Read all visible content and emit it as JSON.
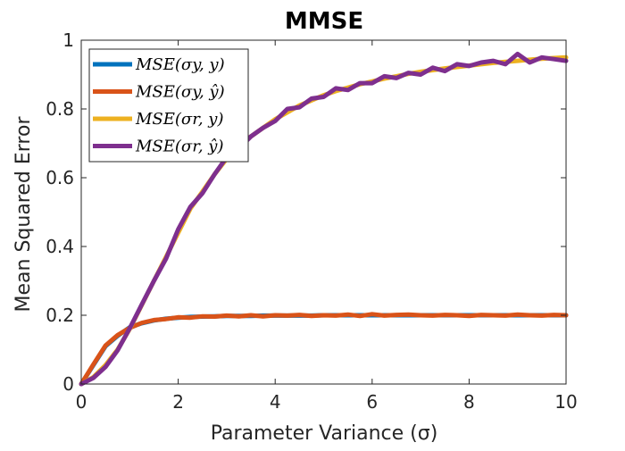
{
  "chart_data": {
    "type": "line",
    "title": "MMSE",
    "xlabel": "Parameter Variance (σ)",
    "ylabel": "Mean Squared Error",
    "xlim": [
      0,
      10
    ],
    "ylim": [
      0,
      1
    ],
    "xticks": [
      0,
      2,
      4,
      6,
      8,
      10
    ],
    "yticks": [
      0,
      0.2,
      0.4,
      0.6,
      0.8,
      1
    ],
    "xtick_labels": [
      "0",
      "2",
      "4",
      "6",
      "8",
      "10"
    ],
    "ytick_labels": [
      "0",
      "0.2",
      "0.4",
      "0.6",
      "0.8",
      "1"
    ],
    "grid": false,
    "legend_position": "top-left",
    "x": [
      0,
      0.25,
      0.5,
      0.75,
      1,
      1.25,
      1.5,
      1.75,
      2,
      2.25,
      2.5,
      2.75,
      3,
      3.25,
      3.5,
      3.75,
      4,
      4.25,
      4.5,
      4.75,
      5,
      5.25,
      5.5,
      5.75,
      6,
      6.25,
      6.5,
      6.75,
      7,
      7.25,
      7.5,
      7.75,
      8,
      8.25,
      8.5,
      8.75,
      9,
      9.25,
      9.5,
      9.75,
      10
    ],
    "series": [
      {
        "name": "MSE(σ_y, y)",
        "legend_label": "MSE(σy, y)",
        "color": "#0072BD",
        "values": [
          0,
          0.055,
          0.11,
          0.14,
          0.165,
          0.177,
          0.185,
          0.19,
          0.193,
          0.195,
          0.196,
          0.197,
          0.198,
          0.198,
          0.198,
          0.199,
          0.199,
          0.199,
          0.199,
          0.199,
          0.2,
          0.2,
          0.2,
          0.2,
          0.2,
          0.2,
          0.2,
          0.2,
          0.2,
          0.2,
          0.2,
          0.2,
          0.2,
          0.2,
          0.2,
          0.2,
          0.2,
          0.2,
          0.2,
          0.2,
          0.2
        ]
      },
      {
        "name": "MSE(σ_y, ŷ)",
        "legend_label": "MSE(σy, ŷ)",
        "color": "#D95319",
        "values": [
          0,
          0.057,
          0.112,
          0.142,
          0.163,
          0.178,
          0.186,
          0.189,
          0.194,
          0.193,
          0.197,
          0.196,
          0.199,
          0.197,
          0.2,
          0.197,
          0.2,
          0.199,
          0.201,
          0.198,
          0.2,
          0.199,
          0.202,
          0.198,
          0.203,
          0.199,
          0.201,
          0.202,
          0.2,
          0.199,
          0.201,
          0.2,
          0.198,
          0.201,
          0.2,
          0.199,
          0.202,
          0.2,
          0.199,
          0.201,
          0.2
        ]
      },
      {
        "name": "MSE(σ_r, y)",
        "legend_label": "MSE(σr, y)",
        "color": "#EDB120",
        "values": [
          0,
          0.02,
          0.055,
          0.1,
          0.16,
          0.23,
          0.3,
          0.37,
          0.44,
          0.51,
          0.56,
          0.61,
          0.655,
          0.69,
          0.72,
          0.745,
          0.77,
          0.79,
          0.81,
          0.825,
          0.84,
          0.852,
          0.862,
          0.872,
          0.88,
          0.888,
          0.895,
          0.902,
          0.908,
          0.913,
          0.918,
          0.922,
          0.926,
          0.93,
          0.934,
          0.937,
          0.94,
          0.943,
          0.946,
          0.948,
          0.95
        ]
      },
      {
        "name": "MSE(σ_r, ŷ)",
        "legend_label": "MSE(σr, ŷ)",
        "color": "#7E2F8E",
        "values": [
          0,
          0.018,
          0.05,
          0.098,
          0.162,
          0.232,
          0.3,
          0.365,
          0.45,
          0.515,
          0.555,
          0.61,
          0.66,
          0.685,
          0.72,
          0.745,
          0.765,
          0.8,
          0.805,
          0.83,
          0.835,
          0.86,
          0.855,
          0.875,
          0.875,
          0.895,
          0.89,
          0.905,
          0.9,
          0.92,
          0.91,
          0.93,
          0.925,
          0.935,
          0.94,
          0.93,
          0.96,
          0.935,
          0.95,
          0.945,
          0.94
        ]
      }
    ]
  }
}
